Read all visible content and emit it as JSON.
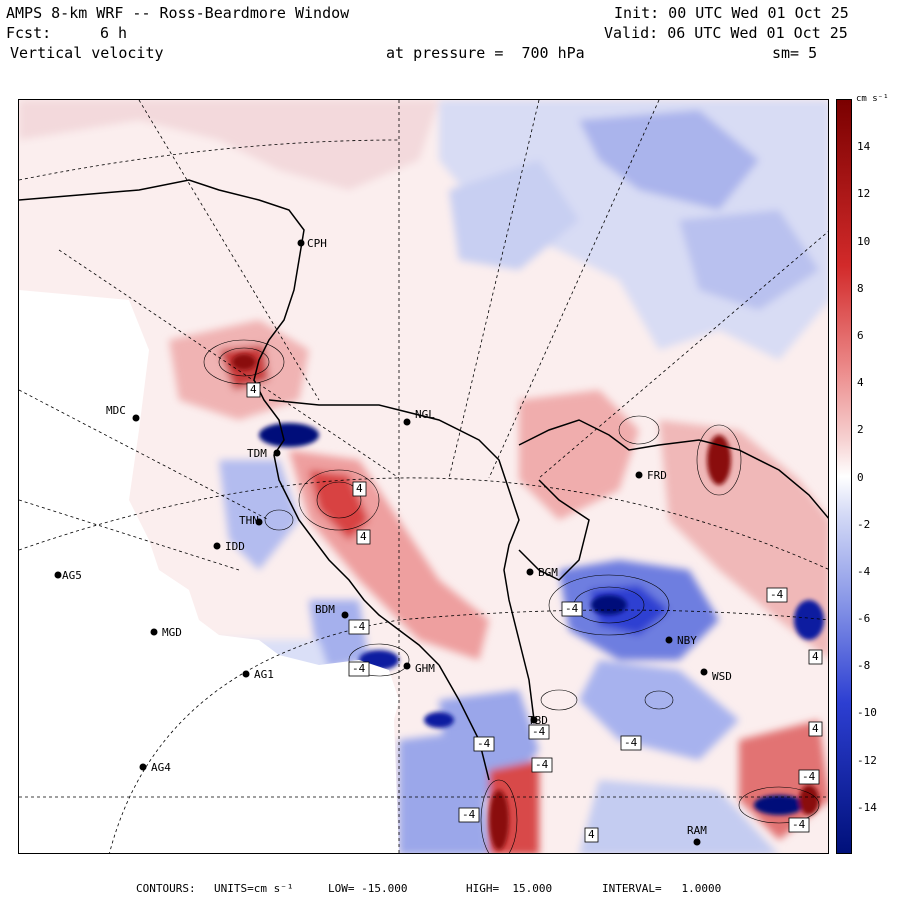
{
  "header": {
    "title": "AMPS 8-km WRF -- Ross-Beardmore Window",
    "init": "Init: 00 UTC Wed 01 Oct 25",
    "fcst_label": "Fcst:",
    "fcst_value": "6 h",
    "valid": "Valid: 06 UTC Wed 01 Oct 25",
    "field": "Vertical velocity",
    "pressure": "at pressure =  700 hPa",
    "smoothing": "sm= 5"
  },
  "colorbar": {
    "unit": "cm s⁻¹",
    "ticks": [
      "14",
      "12",
      "10",
      "8",
      "6",
      "4",
      "2",
      "0",
      "-2",
      "-4",
      "-6",
      "-8",
      "-10",
      "-12",
      "-14"
    ],
    "min": -16,
    "max": 16
  },
  "footer": {
    "contours_label": "CONTOURS:",
    "units": "UNITS=cm s⁻¹",
    "low": "LOW= -15.000",
    "high": "HIGH=  15.000",
    "interval": "INTERVAL=   1.0000"
  },
  "stations": [
    {
      "code": "CPH"
    },
    {
      "code": "MDC"
    },
    {
      "code": "NGL"
    },
    {
      "code": "FRD"
    },
    {
      "code": "IDD"
    },
    {
      "code": "AG5"
    },
    {
      "code": "BGM"
    },
    {
      "code": "BDM"
    },
    {
      "code": "MGD"
    },
    {
      "code": "NBY"
    },
    {
      "code": "AG1"
    },
    {
      "code": "WSD"
    },
    {
      "code": "AG4"
    },
    {
      "code": "RAM"
    },
    {
      "code": "THN"
    },
    {
      "code": "TDM"
    },
    {
      "code": "GHM"
    },
    {
      "code": "TBD"
    }
  ],
  "contour_labels": [
    "4",
    "4",
    "-4",
    "4",
    "-4",
    "-4",
    "-4",
    "-4",
    "-4",
    "-4",
    "-4",
    "-4",
    "4",
    "4",
    "-4",
    "-4",
    "4"
  ],
  "colors": {
    "pos_light": "#f6d0d0",
    "pos_mid": "#ec8c8c",
    "pos_strong": "#d22a2a",
    "pos_max": "#7a0000",
    "neg_light": "#d4daf6",
    "neg_mid": "#8c9ae8",
    "neg_strong": "#2d3fd2",
    "neg_max": "#00107a",
    "neutral": "#fbeeee",
    "nodata": "#ffffff"
  }
}
